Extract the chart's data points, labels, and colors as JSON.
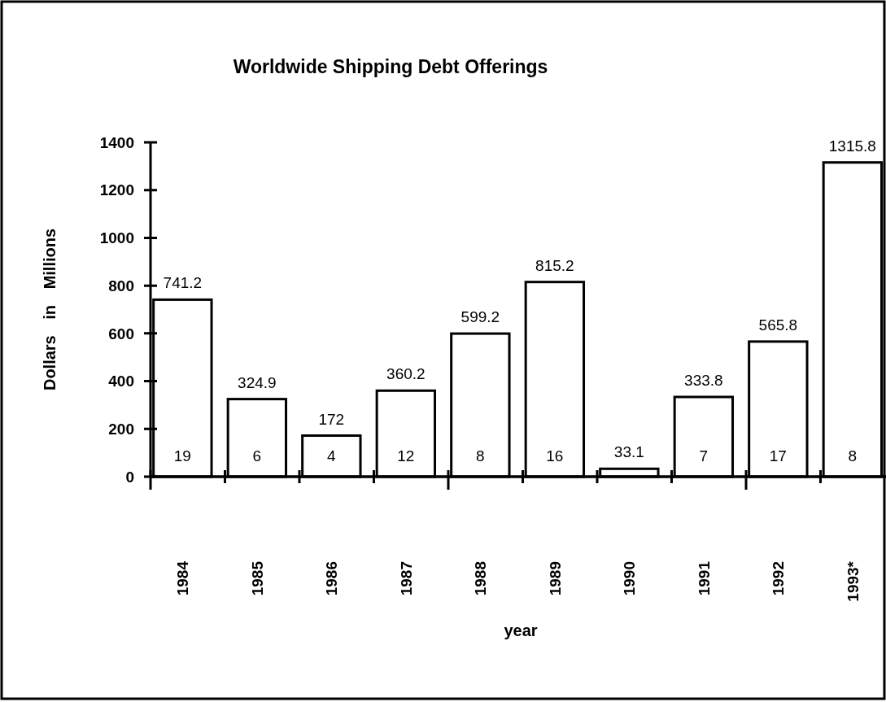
{
  "chart_data": {
    "type": "bar",
    "title": "Worldwide Shipping Debt Offerings",
    "xlabel": "year",
    "ylabel": "Dollars in Millions",
    "categories": [
      "1984",
      "1985",
      "1986",
      "1987",
      "1988",
      "1989",
      "1990",
      "1991",
      "1992",
      "1993*"
    ],
    "values": [
      741.2,
      324.9,
      172,
      360.2,
      599.2,
      815.2,
      33.1,
      333.8,
      565.8,
      1315.8
    ],
    "color": "#ffffff",
    "data_labels": true,
    "ylim": [
      0,
      1400
    ],
    "yticks": [
      0,
      200,
      400,
      600,
      800,
      1000,
      1200,
      1400
    ],
    "grid": false,
    "annotations": [
      "19",
      "6",
      "4",
      "12",
      "8",
      "16",
      "7",
      "17",
      "8"
    ]
  }
}
